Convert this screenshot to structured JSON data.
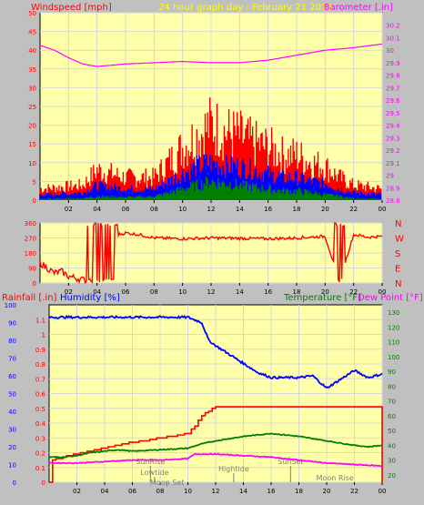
{
  "colors": {
    "background": "#c0c0c0",
    "plot": "#ffffaa",
    "grid": "#d8d8d8",
    "axis_left": "#ff0000",
    "axis_right": "#ff00ff",
    "wind_avg": "#0000ff",
    "wind_gust": "#ff0000",
    "wind_min": "#008000",
    "barometer": "#ff00ff",
    "direction": "#ff0000",
    "rain": "#ff0000",
    "humidity": "#0000ff",
    "temperature": "#008000",
    "dewpoint": "#ff00ff",
    "title": "#ffff00",
    "right_axis_green": "#008000",
    "tide_text": "#808080"
  },
  "header": {
    "windspeed_label": "Windspeed [mph]",
    "title": "24 hour graph day : February 21 2019",
    "barometer_label": "Barometer [.in]"
  },
  "footer_labels": {
    "rainfall": "Rainfall [.in]",
    "humidity": "Humidity [%]",
    "temperature": "Temperature [°F]",
    "dewpoint": "Dew Point [°F]"
  },
  "chart_data": [
    {
      "type": "line",
      "name": "windspeed_barometer",
      "x_ticks": [
        "02",
        "04",
        "06",
        "08",
        "10",
        "12",
        "14",
        "16",
        "18",
        "20",
        "22",
        "00"
      ],
      "ylim_left": [
        0,
        50
      ],
      "yticks_left": [
        0,
        5,
        10,
        15,
        20,
        25,
        30,
        35,
        40,
        45,
        50
      ],
      "ylim_right": [
        28.8,
        30.3
      ],
      "yticks_right": [
        "28.8",
        "28.9",
        "29",
        "29.1",
        "29.2",
        "29.3",
        "29.4",
        "29.5",
        "29.6",
        "29.7",
        "29.8",
        "29.9",
        "30",
        "30.1",
        "30.2"
      ],
      "series": {
        "barometer": {
          "hours": [
            0,
            1,
            2,
            3,
            4,
            5,
            6,
            8,
            10,
            12,
            14,
            16,
            18,
            20,
            22,
            24
          ],
          "values": [
            30.04,
            30.0,
            29.94,
            29.89,
            29.87,
            29.88,
            29.89,
            29.9,
            29.91,
            29.9,
            29.9,
            29.92,
            29.96,
            30.0,
            30.02,
            30.05
          ]
        },
        "wind_gust_envelope": {
          "hours": [
            0,
            3,
            4,
            6,
            8,
            9,
            10,
            11,
            12,
            13,
            14,
            15,
            16,
            17,
            18,
            19,
            20,
            21,
            22,
            24
          ],
          "values": [
            3,
            4,
            8,
            6,
            6,
            10,
            14,
            17,
            20,
            18,
            17,
            15,
            14,
            12,
            12,
            10,
            9,
            6,
            4,
            3
          ]
        },
        "wind_avg_envelope": {
          "hours": [
            0,
            3,
            4,
            6,
            8,
            9,
            10,
            11,
            12,
            13,
            14,
            15,
            16,
            17,
            18,
            19,
            20,
            21,
            22,
            24
          ],
          "values": [
            1.5,
            2,
            4,
            3,
            3,
            5,
            7,
            9,
            10,
            9,
            9,
            8,
            7,
            6,
            6,
            5,
            4.5,
            3,
            2,
            1.5
          ]
        },
        "wind_min_envelope": {
          "hours": [
            0,
            3,
            4,
            6,
            8,
            9,
            10,
            11,
            12,
            13,
            14,
            15,
            16,
            17,
            18,
            19,
            20,
            21,
            22,
            24
          ],
          "values": [
            0.3,
            0.5,
            1,
            0.8,
            1,
            2,
            3,
            4,
            5,
            4.5,
            4,
            3.5,
            3,
            2.5,
            2.5,
            2,
            1.5,
            1,
            0.5,
            0.3
          ]
        }
      }
    },
    {
      "type": "line",
      "name": "wind_direction",
      "ylim": [
        0,
        360
      ],
      "yticks": [
        0,
        90,
        180,
        270,
        360
      ],
      "right_labels": [
        "N",
        "W",
        "S",
        "E",
        "N"
      ],
      "x_ticks": [
        "02",
        "04",
        "06",
        "08",
        "10",
        "12",
        "14",
        "16",
        "18",
        "20",
        "22",
        "00"
      ],
      "series": {
        "direction": {
          "hours": [
            0,
            0.5,
            1,
            1.5,
            2,
            3,
            4,
            4.5,
            5,
            6,
            7,
            8,
            10,
            12,
            14,
            16,
            18,
            20,
            21,
            22,
            23,
            24
          ],
          "values": [
            120,
            90,
            60,
            70,
            40,
            20,
            10,
            30,
            280,
            300,
            290,
            270,
            265,
            270,
            268,
            265,
            270,
            280,
            10,
            290,
            275,
            280
          ]
        }
      }
    },
    {
      "type": "line",
      "name": "rain_humidity_temperature",
      "x_ticks": [
        "02",
        "04",
        "06",
        "08",
        "10",
        "12",
        "14",
        "16",
        "18",
        "20",
        "22",
        "00"
      ],
      "ylim_rain": [
        0,
        1.2
      ],
      "yticks_rain": [
        "0",
        "0.1",
        "0.2",
        "0.3",
        "0.4",
        "0.5",
        "0.6",
        "0.7",
        "0.8",
        "0.9",
        "1",
        "1.1"
      ],
      "ylim_humidity": [
        0,
        100
      ],
      "yticks_humidity": [
        0,
        10,
        20,
        30,
        40,
        50,
        60,
        70,
        80,
        90,
        100
      ],
      "ylim_temp": [
        15,
        135
      ],
      "yticks_temp": [
        20,
        30,
        40,
        50,
        60,
        70,
        80,
        90,
        100,
        110,
        120,
        130
      ],
      "series": {
        "humidity": {
          "hours": [
            0,
            2,
            4,
            6,
            8,
            10,
            11,
            11.5,
            12,
            13,
            14,
            15,
            16,
            17,
            18,
            19,
            20,
            21,
            22,
            23,
            24
          ],
          "values": [
            93,
            93,
            93,
            93,
            93,
            93,
            90,
            80,
            77,
            72,
            67,
            62,
            59,
            59,
            59,
            60,
            53,
            58,
            63,
            59,
            61
          ]
        },
        "rain": {
          "hours": [
            0,
            0.2,
            1,
            2,
            3,
            4,
            5,
            6,
            7,
            8,
            9,
            10,
            10.5,
            11,
            12,
            13,
            14,
            16,
            18,
            20,
            22,
            23.9,
            24
          ],
          "values": [
            0.0,
            0.15,
            0.17,
            0.19,
            0.21,
            0.23,
            0.25,
            0.27,
            0.28,
            0.3,
            0.31,
            0.33,
            0.38,
            0.45,
            0.51,
            0.51,
            0.51,
            0.51,
            0.51,
            0.51,
            0.51,
            0.51,
            0.0
          ]
        },
        "temperature": {
          "hours": [
            0,
            1,
            2,
            3,
            4,
            5,
            6,
            8,
            10,
            11,
            12,
            14,
            16,
            18,
            20,
            22,
            23,
            24
          ],
          "values": [
            32,
            32,
            33,
            35,
            36,
            37,
            36,
            37,
            38,
            41,
            43,
            46,
            48,
            46,
            43,
            40,
            39,
            40
          ]
        },
        "dewpoint": {
          "hours": [
            0,
            2,
            4,
            6,
            8,
            10,
            10.5,
            12,
            14,
            16,
            18,
            20,
            22,
            24
          ],
          "values": [
            28,
            28,
            29,
            30,
            30,
            31,
            34,
            34,
            33,
            32,
            30,
            28,
            27,
            26
          ]
        }
      },
      "astro_events": [
        {
          "label": "SunRise",
          "hour": 7.3
        },
        {
          "label": "Lowtide",
          "hour": 7.6
        },
        {
          "label": "Moon Set",
          "hour": 8.5
        },
        {
          "label": "Hightide",
          "hour": 13.3
        },
        {
          "label": "SunSet",
          "hour": 17.4
        },
        {
          "label": "Moon Rise",
          "hour": 20.6
        }
      ]
    }
  ]
}
